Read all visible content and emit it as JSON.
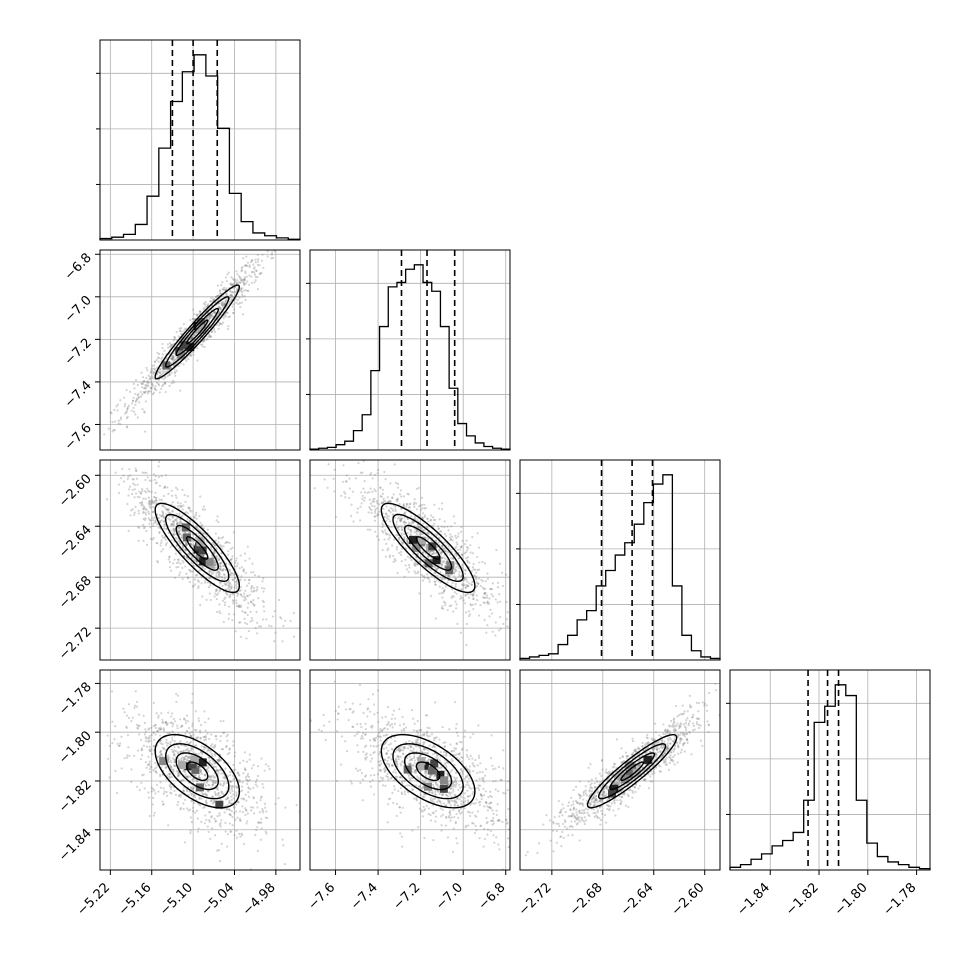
{
  "chart_data": {
    "type": "corner",
    "grid": true,
    "n_params": 4,
    "params": [
      {
        "lim": [
          -5.235,
          -4.945
        ],
        "ticks": [
          -5.22,
          -5.16,
          -5.1,
          -5.04,
          -4.98
        ],
        "tick_labels": [
          "−5.22",
          "−5.16",
          "−5.10",
          "−5.04",
          "−4.98"
        ],
        "mean": -5.094,
        "sd": 0.0305,
        "quantiles": [
          -5.13,
          -5.1,
          -5.065
        ],
        "hist_counts": [
          2,
          4,
          8,
          22,
          62,
          130,
          196,
          238,
          262,
          232,
          158,
          66,
          26,
          10,
          6,
          3,
          1
        ]
      },
      {
        "lim": [
          -7.72,
          -6.78
        ],
        "ticks": [
          -7.6,
          -7.4,
          -7.2,
          -7.0,
          -6.8
        ],
        "tick_labels": [
          "−7.6",
          "−7.4",
          "−7.2",
          "−7.0",
          "−6.8"
        ],
        "mean": -7.165,
        "sd": 0.11,
        "quantiles": [
          -7.29,
          -7.17,
          -7.04
        ],
        "hist_counts": [
          1,
          2,
          3,
          6,
          10,
          22,
          40,
          90,
          140,
          185,
          190,
          205,
          210,
          190,
          180,
          140,
          70,
          30,
          16,
          8,
          4,
          2,
          1
        ]
      },
      {
        "lim": [
          -2.745,
          -2.588
        ],
        "ticks": [
          -2.72,
          -2.68,
          -2.64,
          -2.6
        ],
        "tick_labels": [
          "−2.72",
          "−2.68",
          "−2.64",
          "−2.60"
        ],
        "mean": -2.657,
        "sd": 0.0175,
        "quantiles": [
          -2.681,
          -2.657,
          -2.641
        ],
        "hist_counts": [
          1,
          2,
          3,
          4,
          10,
          16,
          26,
          32,
          48,
          58,
          68,
          76,
          88,
          102,
          114,
          120,
          48,
          16,
          6,
          2,
          1
        ]
      },
      {
        "lim": [
          -1.8565,
          -1.7745
        ],
        "ticks": [
          -1.84,
          -1.82,
          -1.8,
          -1.78
        ],
        "tick_labels": [
          "−1.84",
          "−1.82",
          "−1.80",
          "−1.78"
        ],
        "mean": -1.816,
        "sd": 0.0075,
        "quantiles": [
          -1.8245,
          -1.8165,
          -1.812
        ],
        "hist_counts": [
          2,
          4,
          8,
          12,
          18,
          22,
          28,
          52,
          110,
          122,
          138,
          130,
          52,
          20,
          10,
          6,
          4,
          2,
          1
        ]
      }
    ],
    "pairs": [
      {
        "row": 1,
        "col": 0,
        "corr": 0.96
      },
      {
        "row": 2,
        "col": 0,
        "corr": -0.85
      },
      {
        "row": 2,
        "col": 1,
        "corr": -0.85
      },
      {
        "row": 3,
        "col": 0,
        "corr": -0.55
      },
      {
        "row": 3,
        "col": 1,
        "corr": -0.55
      },
      {
        "row": 3,
        "col": 2,
        "corr": 0.92
      }
    ],
    "contour_levels_sigma": [
      0.5,
      1.0,
      1.5,
      2.0
    ],
    "scatter_color": "#808080",
    "line_color": "#000000"
  }
}
